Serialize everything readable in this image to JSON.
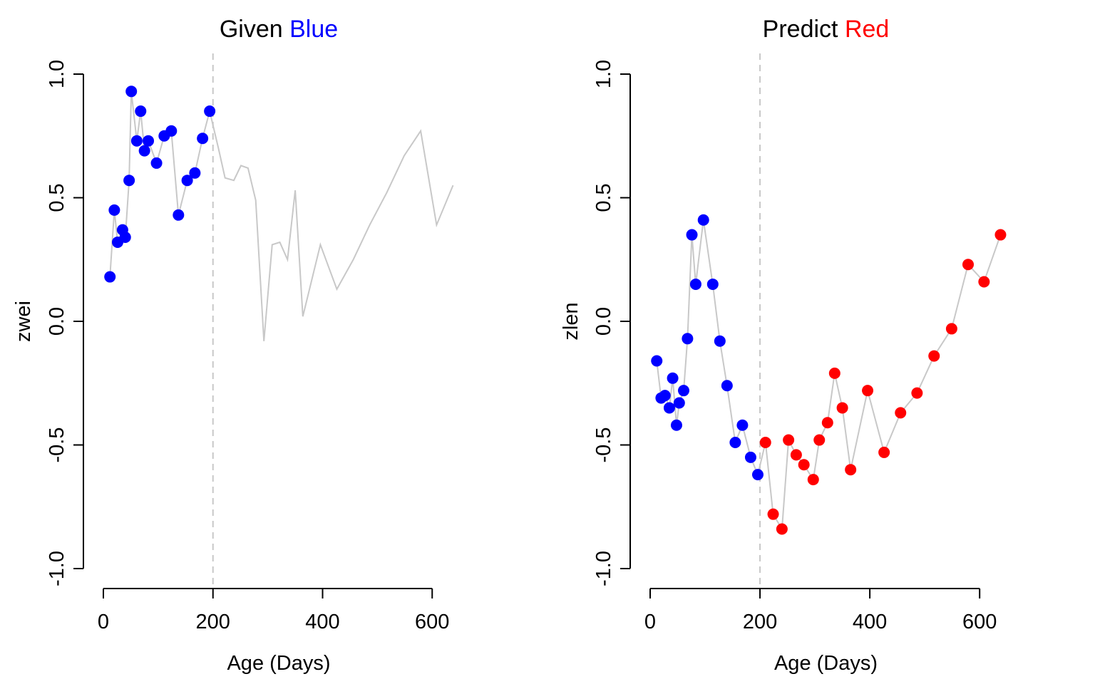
{
  "colors": {
    "given": "#0000ff",
    "predict": "#ff0000",
    "line": "#c8c8c8",
    "cutoff": "#c8c8c8",
    "axis": "#000000"
  },
  "chart_data": [
    {
      "type": "line",
      "title": "Given Blue",
      "title_parts": [
        {
          "text": "Given ",
          "color": "#000000"
        },
        {
          "text": "Blue",
          "color": "#0000ff"
        }
      ],
      "xlabel": "Age (Days)",
      "ylabel": "zwei",
      "xlim": [
        0,
        640
      ],
      "ylim": [
        -1.0,
        1.0
      ],
      "xticks": [
        0,
        200,
        400,
        600
      ],
      "xtick_labels": [
        "0",
        "200",
        "400",
        "600"
      ],
      "yticks": [
        -1.0,
        -0.5,
        0.0,
        0.5,
        1.0
      ],
      "ytick_labels": [
        "-1.0",
        "-0.5",
        "0.0",
        "0.5",
        "1.0"
      ],
      "vline": 200,
      "grid": false,
      "series": [
        {
          "role": "observed",
          "color": "#0000ff",
          "markers": true,
          "x": [
            12,
            20,
            26,
            35,
            40,
            47,
            51,
            61,
            68,
            75,
            82,
            97,
            111,
            124,
            137,
            153,
            167,
            181,
            194
          ],
          "y": [
            0.18,
            0.45,
            0.32,
            0.37,
            0.34,
            0.57,
            0.93,
            0.73,
            0.85,
            0.69,
            0.73,
            0.64,
            0.75,
            0.77,
            0.43,
            0.57,
            0.6,
            0.74,
            0.85
          ]
        },
        {
          "role": "future",
          "color": "#c8c8c8",
          "markers": false,
          "x": [
            194,
            210,
            222,
            238,
            251,
            264,
            278,
            293,
            308,
            322,
            336,
            350,
            364,
            396,
            426,
            456,
            486,
            517,
            549,
            579,
            608,
            638
          ],
          "y": [
            0.85,
            0.7,
            0.58,
            0.57,
            0.63,
            0.62,
            0.49,
            -0.08,
            0.31,
            0.32,
            0.25,
            0.53,
            0.02,
            0.31,
            0.13,
            0.25,
            0.39,
            0.52,
            0.67,
            0.77,
            0.39,
            0.55
          ]
        }
      ]
    },
    {
      "type": "line",
      "title": "Predict Red",
      "title_parts": [
        {
          "text": "Predict ",
          "color": "#000000"
        },
        {
          "text": "Red",
          "color": "#ff0000"
        }
      ],
      "xlabel": "Age (Days)",
      "ylabel": "zlen",
      "xlim": [
        0,
        640
      ],
      "ylim": [
        -1.0,
        1.0
      ],
      "xticks": [
        0,
        200,
        400,
        600
      ],
      "xtick_labels": [
        "0",
        "200",
        "400",
        "600"
      ],
      "yticks": [
        -1.0,
        -0.5,
        0.0,
        0.5,
        1.0
      ],
      "ytick_labels": [
        "-1.0",
        "-0.5",
        "0.0",
        "0.5",
        "1.0"
      ],
      "vline": 200,
      "grid": false,
      "series": [
        {
          "role": "observed",
          "color": "#0000ff",
          "markers": true,
          "x": [
            12,
            20,
            27,
            35,
            41,
            48,
            53,
            61,
            68,
            76,
            83,
            97,
            114,
            127,
            140,
            155,
            168,
            183,
            196
          ],
          "y": [
            -0.16,
            -0.31,
            -0.3,
            -0.35,
            -0.23,
            -0.42,
            -0.33,
            -0.28,
            -0.07,
            0.35,
            0.15,
            0.41,
            0.15,
            -0.08,
            -0.26,
            -0.49,
            -0.42,
            -0.55,
            -0.62
          ]
        },
        {
          "role": "predicted",
          "color": "#ff0000",
          "markers": true,
          "x": [
            210,
            224,
            240,
            252,
            266,
            280,
            297,
            308,
            323,
            336,
            350,
            365,
            396,
            426,
            456,
            486,
            517,
            549,
            579,
            608,
            638
          ],
          "y": [
            -0.49,
            -0.78,
            -0.84,
            -0.48,
            -0.54,
            -0.58,
            -0.64,
            -0.48,
            -0.41,
            -0.21,
            -0.35,
            -0.6,
            -0.28,
            -0.53,
            -0.37,
            -0.29,
            -0.14,
            -0.03,
            0.23,
            0.16,
            0.35
          ]
        }
      ]
    }
  ]
}
